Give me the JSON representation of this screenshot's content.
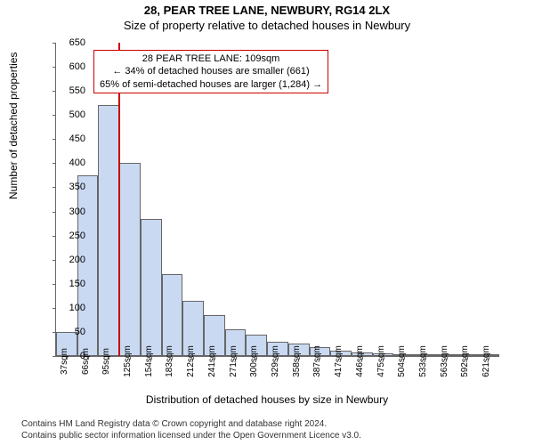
{
  "header": {
    "address": "28, PEAR TREE LANE, NEWBURY, RG14 2LX",
    "subtitle": "Size of property relative to detached houses in Newbury"
  },
  "chart": {
    "type": "histogram",
    "ylabel": "Number of detached properties",
    "xlabel": "Distribution of detached houses by size in Newbury",
    "ylim": [
      0,
      650
    ],
    "ytick_step": 50,
    "bar_fill": "#c9d9f2",
    "bar_border": "#666666",
    "background_color": "#ffffff",
    "marker_color": "#cc0000",
    "marker_x_sqm": 109,
    "x_categories_sqm": [
      37,
      66,
      95,
      125,
      154,
      183,
      212,
      241,
      271,
      300,
      329,
      358,
      387,
      417,
      446,
      475,
      504,
      533,
      563,
      592,
      621
    ],
    "bar_values": [
      50,
      375,
      520,
      400,
      285,
      170,
      115,
      85,
      55,
      45,
      30,
      25,
      18,
      12,
      8,
      5,
      4,
      3,
      2,
      2,
      1
    ]
  },
  "annotation": {
    "line1": "28 PEAR TREE LANE: 109sqm",
    "line2": "← 34% of detached houses are smaller (661)",
    "line3": "65% of semi-detached houses are larger (1,284) →",
    "border_color": "#cc0000"
  },
  "footer": {
    "line1": "Contains HM Land Registry data © Crown copyright and database right 2024.",
    "line2": "Contains public sector information licensed under the Open Government Licence v3.0."
  }
}
